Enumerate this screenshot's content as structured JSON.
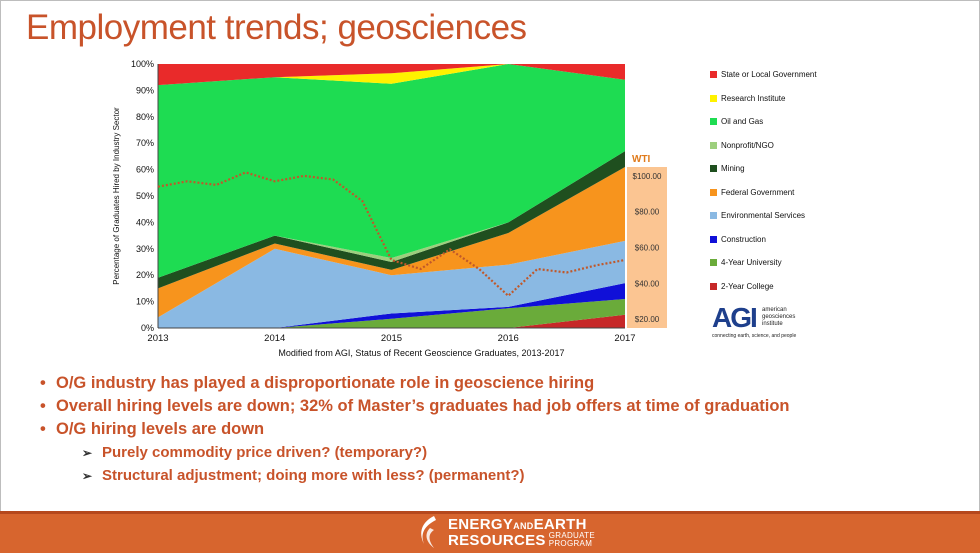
{
  "slide": {
    "title": "Employment trends; geosciences",
    "bullets": [
      "O/G industry has played a disproportionate role in geoscience hiring",
      "Overall hiring levels are down; 32% of Master’s graduates had job offers at time of graduation",
      "O/G hiring levels are down"
    ],
    "sub_bullets": [
      "Purely commodity price driven? (temporary?)",
      "Structural adjustment; doing more with less? (permanent?)"
    ],
    "bullet_glyph": "•",
    "sub_bullet_glyph": "➢"
  },
  "footer": {
    "line1_a": "ENERGY",
    "line1_b": "AND",
    "line1_c": "EARTH",
    "line2_a": "RESOURCES",
    "line2_b1": "GRADUATE",
    "line2_b2": "PROGRAM",
    "bg_color": "#d7652e"
  },
  "agi": {
    "letters": "AGI",
    "name_line1": "american",
    "name_line2": "geosciences",
    "name_line3": "institute",
    "tagline": "connecting earth, science, and people"
  },
  "chart_data": {
    "type": "area",
    "stacked": true,
    "x": [
      2013,
      2014,
      2015,
      2016,
      2017
    ],
    "ylabel": "Percentage of Graduates Hired by Industry Sector",
    "caption": "Modified from AGI, Status of Recent Geoscience Graduates, 2013-2017",
    "ylim": [
      0,
      100
    ],
    "yticks": [
      "0%",
      "10%",
      "20%",
      "30%",
      "40%",
      "50%",
      "60%",
      "70%",
      "80%",
      "90%",
      "100%"
    ],
    "series": [
      {
        "name": "2-Year College",
        "color": "#c62828",
        "values": [
          0,
          0,
          0,
          0,
          5
        ]
      },
      {
        "name": "4-Year University",
        "color": "#6aab3a",
        "values": [
          0,
          0,
          3.5,
          7.5,
          6
        ]
      },
      {
        "name": "Construction",
        "color": "#1010d8",
        "values": [
          0,
          0,
          2,
          0.5,
          6
        ]
      },
      {
        "name": "Environmental Services",
        "color": "#8ab9e3",
        "values": [
          4,
          30,
          14.5,
          16,
          16
        ]
      },
      {
        "name": "Federal Government",
        "color": "#f7941d",
        "values": [
          11,
          2,
          2,
          12,
          28
        ]
      },
      {
        "name": "Mining",
        "color": "#1f4f1f",
        "values": [
          4,
          3,
          3,
          4,
          6
        ]
      },
      {
        "name": "Nonprofit/NGO",
        "color": "#9dcf7d",
        "values": [
          0,
          0,
          1.5,
          0,
          0
        ]
      },
      {
        "name": "Oil and Gas",
        "color": "#1edc52",
        "values": [
          73,
          60,
          66,
          60,
          27
        ]
      },
      {
        "name": "Research Institute",
        "color": "#fff200",
        "values": [
          0,
          0,
          4,
          0,
          0
        ]
      },
      {
        "name": "State or Local Government",
        "color": "#e92a2a",
        "values": [
          8,
          5,
          3.5,
          0,
          6
        ]
      }
    ],
    "legend_order": [
      "State or Local Government",
      "Research Institute",
      "Oil and Gas",
      "Nonprofit/NGO",
      "Mining",
      "Federal Government",
      "Environmental Services",
      "Construction",
      "4-Year University",
      "2-Year College"
    ],
    "wti": {
      "label": "WTI",
      "axis_ticks": [
        "$100.00",
        "$80.00",
        "$60.00",
        "$40.00",
        "$20.00"
      ],
      "axis_tick_values": [
        100,
        80,
        60,
        40,
        20
      ],
      "range": [
        15,
        105
      ],
      "line_color": "#c0582a",
      "x": [
        2013,
        2013.25,
        2013.5,
        2013.75,
        2014,
        2014.25,
        2014.5,
        2014.75,
        2015,
        2015.25,
        2015.5,
        2015.75,
        2016,
        2016.25,
        2016.5,
        2016.75,
        2017
      ],
      "y": [
        94,
        97,
        95,
        102,
        97,
        100,
        98,
        86,
        53,
        48,
        59,
        48,
        33,
        48,
        46,
        50,
        53
      ]
    }
  }
}
